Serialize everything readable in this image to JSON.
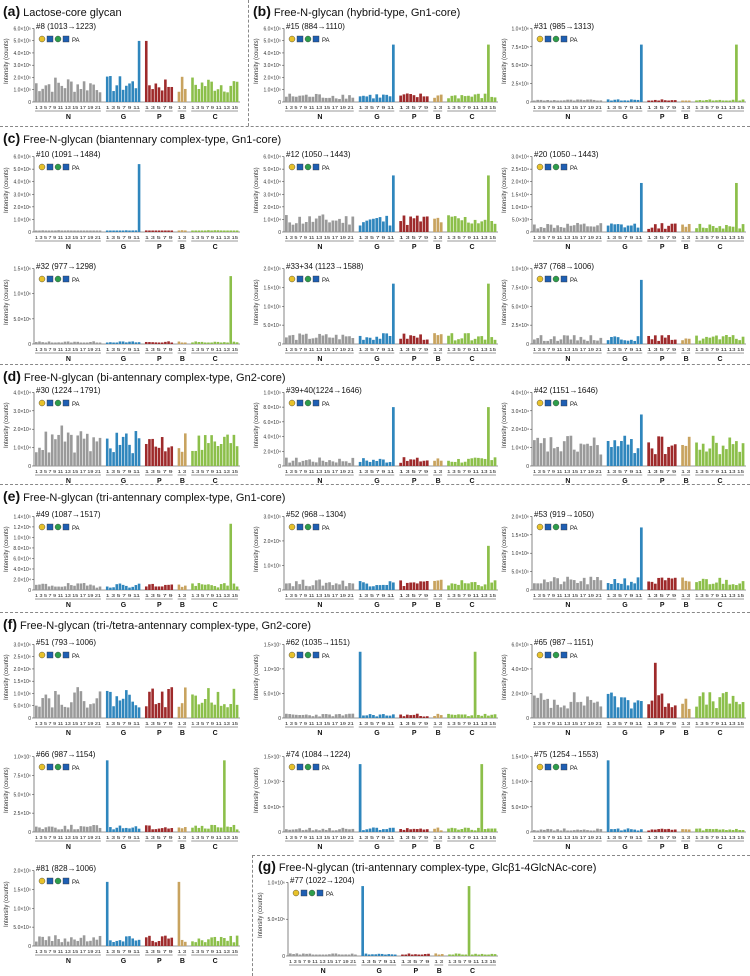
{
  "sections": [
    {
      "letter": "(a)",
      "title": "Lactose-core glycan"
    },
    {
      "letter": "(b)",
      "title": "Free-N-glycan (hybrid-type, Gn1-core)"
    },
    {
      "letter": "(c)",
      "title": "Free-N-glycan (biantennary complex-type, Gn1-core)"
    },
    {
      "letter": "(d)",
      "title": "Free-N-glycan (bi-antennary complex-type, Gn2-core)"
    },
    {
      "letter": "(e)",
      "title": "Free-N-glycan (tri-antennary complex-type, Gn1-core)"
    },
    {
      "letter": "(f)",
      "title": "Free-N-glycan (tri-/tetra-antennary complex-type, Gn2-core)"
    },
    {
      "letter": "(g)",
      "title": "Free-N-glycan (tri-antennary complex-type, Glcβ1-4GlcNAc-core)"
    }
  ],
  "ylabel": "Intensity (counts)",
  "group_labels": [
    "N",
    "G",
    "P",
    "B",
    "C"
  ],
  "tick_labels": {
    "N": "1 3 5 7 9 11 13 15 17 19 21",
    "G": "1 3 5 7 9 11",
    "P": "1 3 5 7 9",
    "B": "1 3",
    "C": "1 3 5 7 9 11 13 15"
  },
  "colors": {
    "N": "#9a9a9a",
    "G": "#2f86bd",
    "P": "#9e2a2b",
    "B": "#c8a35f",
    "C": "#8cbf4a"
  },
  "glycan_label_suffix": "PA",
  "chart_data": [
    {
      "type": "bar",
      "title": "#8 (1013→1223)",
      "ymax_label": "6.0×10⁵",
      "yticks": [
        "0",
        "1.0×10⁵",
        "2.0×10⁵",
        "3.0×10⁵",
        "4.0×10⁵",
        "5.0×10⁵",
        "6.0×10⁵"
      ],
      "peak": 0.83,
      "spikes": {
        "G": [
          11
        ],
        "P": [
          1
        ]
      },
      "base": 0.3
    },
    {
      "type": "bar",
      "title": "#15 (884→1110)",
      "ymax_label": "6.0×10⁵",
      "yticks": [
        "0",
        "1.0×10⁵",
        "2.0×10⁵",
        "3.0×10⁵",
        "4.0×10⁵",
        "5.0×10⁵",
        "6.0×10⁵"
      ],
      "peak": 0.78,
      "spikes": {
        "G": [
          11
        ],
        "C": [
          13
        ]
      },
      "base": 0.1
    },
    {
      "type": "bar",
      "title": "#31 (985→1313)",
      "ymax_label": "1.0×10⁶",
      "yticks": [
        "0",
        "2.5×10⁵",
        "5.0×10⁵",
        "7.5×10⁵",
        "1.0×10⁶"
      ],
      "peak": 0.78,
      "spikes": {
        "G": [
          11
        ],
        "C": [
          13
        ]
      },
      "base": 0.03
    },
    {
      "type": "bar",
      "title": "#10 (1091→1484)",
      "ymax_label": "6.0×10⁶",
      "yticks": [
        "0",
        "1.0×10⁶",
        "2.0×10⁶",
        "3.0×10⁶",
        "4.0×10⁶",
        "5.0×10⁶",
        "6.0×10⁶"
      ],
      "peak": 0.9,
      "spikes": {
        "G": [
          11
        ]
      },
      "base": 0.02
    },
    {
      "type": "bar",
      "title": "#12 (1050→1443)",
      "ymax_label": "6.0×10⁴",
      "yticks": [
        "0",
        "1.0×10⁴",
        "2.0×10⁴",
        "3.0×10⁴",
        "4.0×10⁴",
        "5.0×10⁴",
        "6.0×10⁴"
      ],
      "peak": 0.75,
      "spikes": {
        "G": [
          11
        ],
        "C": [
          13
        ]
      },
      "base": 0.2
    },
    {
      "type": "bar",
      "title": "#20 (1050→1443)",
      "ymax_label": "3.0×10⁴",
      "yticks": [
        "0",
        "5.0×10³",
        "1.0×10⁴",
        "1.5×10⁴",
        "2.0×10⁴",
        "2.5×10⁴",
        "3.0×10⁴"
      ],
      "peak": 0.65,
      "spikes": {
        "G": [
          11
        ],
        "C": [
          13
        ]
      },
      "base": 0.1
    },
    {
      "type": "bar",
      "title": "#32 (977→1298)",
      "ymax_label": "1.5×10⁶",
      "yticks": [
        "0",
        "5.0×10⁵",
        "1.0×10⁶",
        "1.5×10⁶"
      ],
      "peak": 0.9,
      "spikes": {
        "C": [
          13
        ]
      },
      "base": 0.03
    },
    {
      "type": "bar",
      "title": "#33+34 (1123→1588)",
      "ymax_label": "2.0×10⁵",
      "yticks": [
        "0",
        "5.0×10⁴",
        "1.0×10⁵",
        "1.5×10⁵",
        "2.0×10⁵"
      ],
      "peak": 0.8,
      "spikes": {
        "G": [
          11
        ],
        "C": [
          13
        ]
      },
      "base": 0.12
    },
    {
      "type": "bar",
      "title": "#37 (768→1006)",
      "ymax_label": "1.0×10⁶",
      "yticks": [
        "0",
        "2.5×10⁵",
        "5.0×10⁵",
        "7.5×10⁵",
        "1.0×10⁶"
      ],
      "peak": 0.85,
      "spikes": {
        "G": [
          11
        ]
      },
      "base": 0.1
    },
    {
      "type": "bar",
      "title": "#30 (1224→1791)",
      "ymax_label": "4.0×10⁴",
      "yticks": [
        "0",
        "1.0×10⁴",
        "2.0×10⁴",
        "3.0×10⁴",
        "4.0×10⁴"
      ],
      "peak": 0.55,
      "spikes": {
        "N": [
          9
        ]
      },
      "base": 0.4
    },
    {
      "type": "bar",
      "title": "#39+40(1224→1646)",
      "ymax_label": "1.0×10⁵",
      "yticks": [
        "0",
        "2.0×10⁴",
        "4.0×10⁴",
        "6.0×10⁴",
        "8.0×10⁴",
        "1.0×10⁵"
      ],
      "peak": 0.8,
      "spikes": {
        "G": [
          11
        ],
        "C": [
          13
        ]
      },
      "base": 0.1
    },
    {
      "type": "bar",
      "title": "#42 (1151→1646)",
      "ymax_label": "4.0×10⁴",
      "yticks": [
        "0",
        "1.0×10⁴",
        "2.0×10⁴",
        "3.0×10⁴",
        "4.0×10⁴"
      ],
      "peak": 0.7,
      "spikes": {
        "G": [
          11
        ]
      },
      "base": 0.35
    },
    {
      "type": "bar",
      "title": "#49 (1087→1517)",
      "ymax_label": "1.4×10⁵",
      "yticks": [
        "0",
        "2.0×10⁴",
        "4.0×10⁴",
        "6.0×10⁴",
        "8.0×10⁴",
        "1.0×10⁵",
        "1.2×10⁵",
        "1.4×10⁵"
      ],
      "peak": 0.9,
      "spikes": {
        "C": [
          13
        ]
      },
      "base": 0.08
    },
    {
      "type": "bar",
      "title": "#52 (968→1304)",
      "ymax_label": "3.0×10⁵",
      "yticks": [
        "0",
        "1.0×10⁵",
        "2.0×10⁵",
        "3.0×10⁵"
      ],
      "peak": 0.6,
      "spikes": {
        "C": [
          13
        ]
      },
      "base": 0.12
    },
    {
      "type": "bar",
      "title": "#53 (919→1050)",
      "ymax_label": "2.0×10⁶",
      "yticks": [
        "0",
        "5.0×10⁵",
        "1.0×10⁶",
        "1.5×10⁶",
        "2.0×10⁶"
      ],
      "peak": 0.85,
      "spikes": {
        "G": [
          11
        ]
      },
      "base": 0.15
    },
    {
      "type": "bar",
      "title": "#51 (793→1006)",
      "ymax_label": "3.0×10⁶",
      "yticks": [
        "0",
        "5.0×10⁵",
        "1.0×10⁶",
        "1.5×10⁶",
        "2.0×10⁶",
        "2.5×10⁶",
        "3.0×10⁶"
      ],
      "peak": 0.5,
      "spikes": {},
      "base": 0.35
    },
    {
      "type": "bar",
      "title": "#62 (1035→1151)",
      "ymax_label": "1.5×10⁷",
      "yticks": [
        "0",
        "5.0×10⁶",
        "1.0×10⁷",
        "1.5×10⁷"
      ],
      "peak": 0.9,
      "spikes": {
        "G": [
          1
        ],
        "C": [
          9
        ]
      },
      "base": 0.05
    },
    {
      "type": "bar",
      "title": "#65 (987→1151)",
      "ymax_label": "6.0×10⁵",
      "yticks": [
        "0",
        "2.0×10⁵",
        "4.0×10⁵",
        "6.0×10⁵"
      ],
      "peak": 0.75,
      "spikes": {
        "P": [
          3
        ]
      },
      "base": 0.3
    },
    {
      "type": "bar",
      "title": "#66 (987→1154)",
      "ymax_label": "1.0×10⁷",
      "yticks": [
        "0",
        "2.5×10⁶",
        "5.0×10⁶",
        "7.5×10⁶",
        "1.0×10⁷"
      ],
      "peak": 0.95,
      "spikes": {
        "G": [
          1
        ],
        "C": [
          11
        ]
      },
      "base": 0.08
    },
    {
      "type": "bar",
      "title": "#74 (1084→1224)",
      "ymax_label": "1.5×10⁷",
      "yticks": [
        "0",
        "5.0×10⁶",
        "1.0×10⁷",
        "1.5×10⁷"
      ],
      "peak": 0.9,
      "spikes": {
        "G": [
          1
        ],
        "C": [
          11
        ]
      },
      "base": 0.05
    },
    {
      "type": "bar",
      "title": "#75 (1254→1553)",
      "ymax_label": "1.5×10⁶",
      "yticks": [
        "0",
        "5.0×10⁵",
        "1.0×10⁶",
        "1.5×10⁶"
      ],
      "peak": 0.95,
      "spikes": {
        "G": [
          1
        ]
      },
      "base": 0.04
    },
    {
      "type": "bar",
      "title": "#81 (828→1006)",
      "ymax_label": "2.0×10⁵",
      "yticks": [
        "0",
        "5.0×10⁴",
        "1.0×10⁵",
        "1.5×10⁵",
        "2.0×10⁵"
      ],
      "peak": 0.85,
      "spikes": {
        "G": [
          1
        ],
        "B": [
          1
        ]
      },
      "base": 0.12
    },
    {
      "type": "bar",
      "title": "#77 (1022→1204)",
      "ymax_label": "1.0×10⁶",
      "yticks": [
        "0",
        "5.0×10⁵",
        "1.0×10⁶"
      ],
      "peak": 0.95,
      "spikes": {
        "G": [
          1
        ],
        "C": [
          7
        ]
      },
      "base": 0.03
    }
  ]
}
